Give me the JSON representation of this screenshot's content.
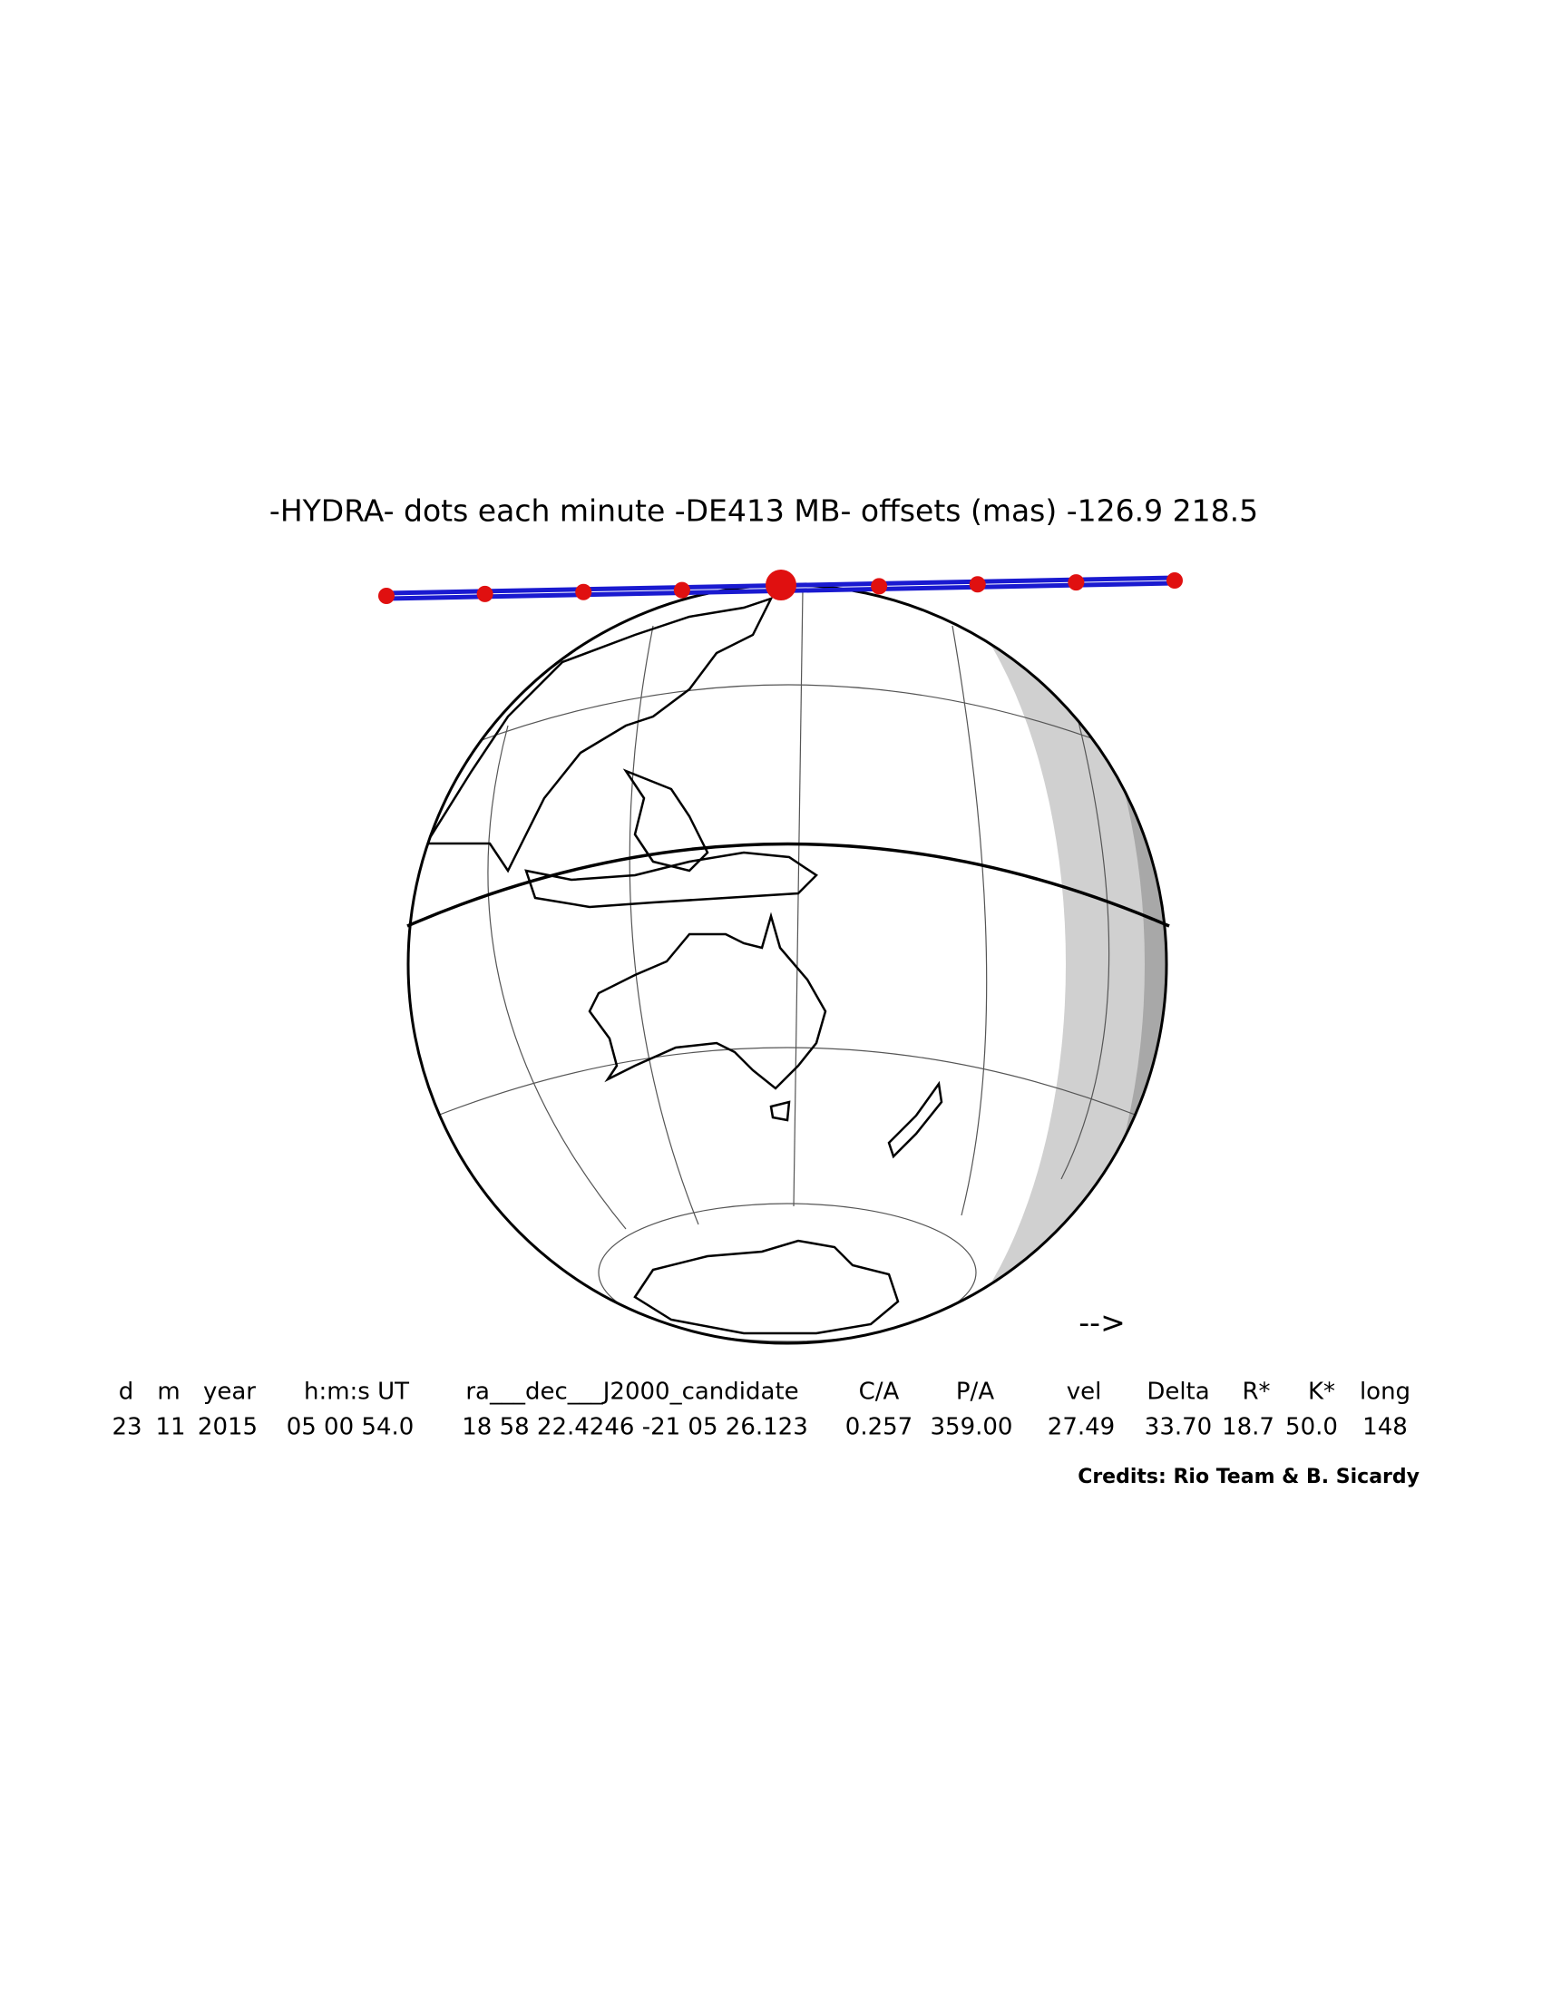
{
  "title": "-HYDRA- dots each minute -DE413 MB- offsets (mas) -126.9   218.5",
  "direction_arrow": "-->",
  "table": {
    "header": [
      "d",
      "m",
      "year",
      "h:m:s UT",
      "ra___dec___J2000_candidate",
      "C/A",
      "P/A",
      "vel",
      "Delta",
      "R*",
      "K*",
      "long"
    ],
    "values": [
      "23",
      "11",
      "2015",
      "05 00 54.0",
      "18 58 22.4246 -21 05 26.123",
      "0.257",
      "359.00",
      "27.49",
      "33.70",
      "18.7",
      "50.0",
      "148"
    ]
  },
  "credits": "Credits: Rio Team & B. Sicardy"
}
